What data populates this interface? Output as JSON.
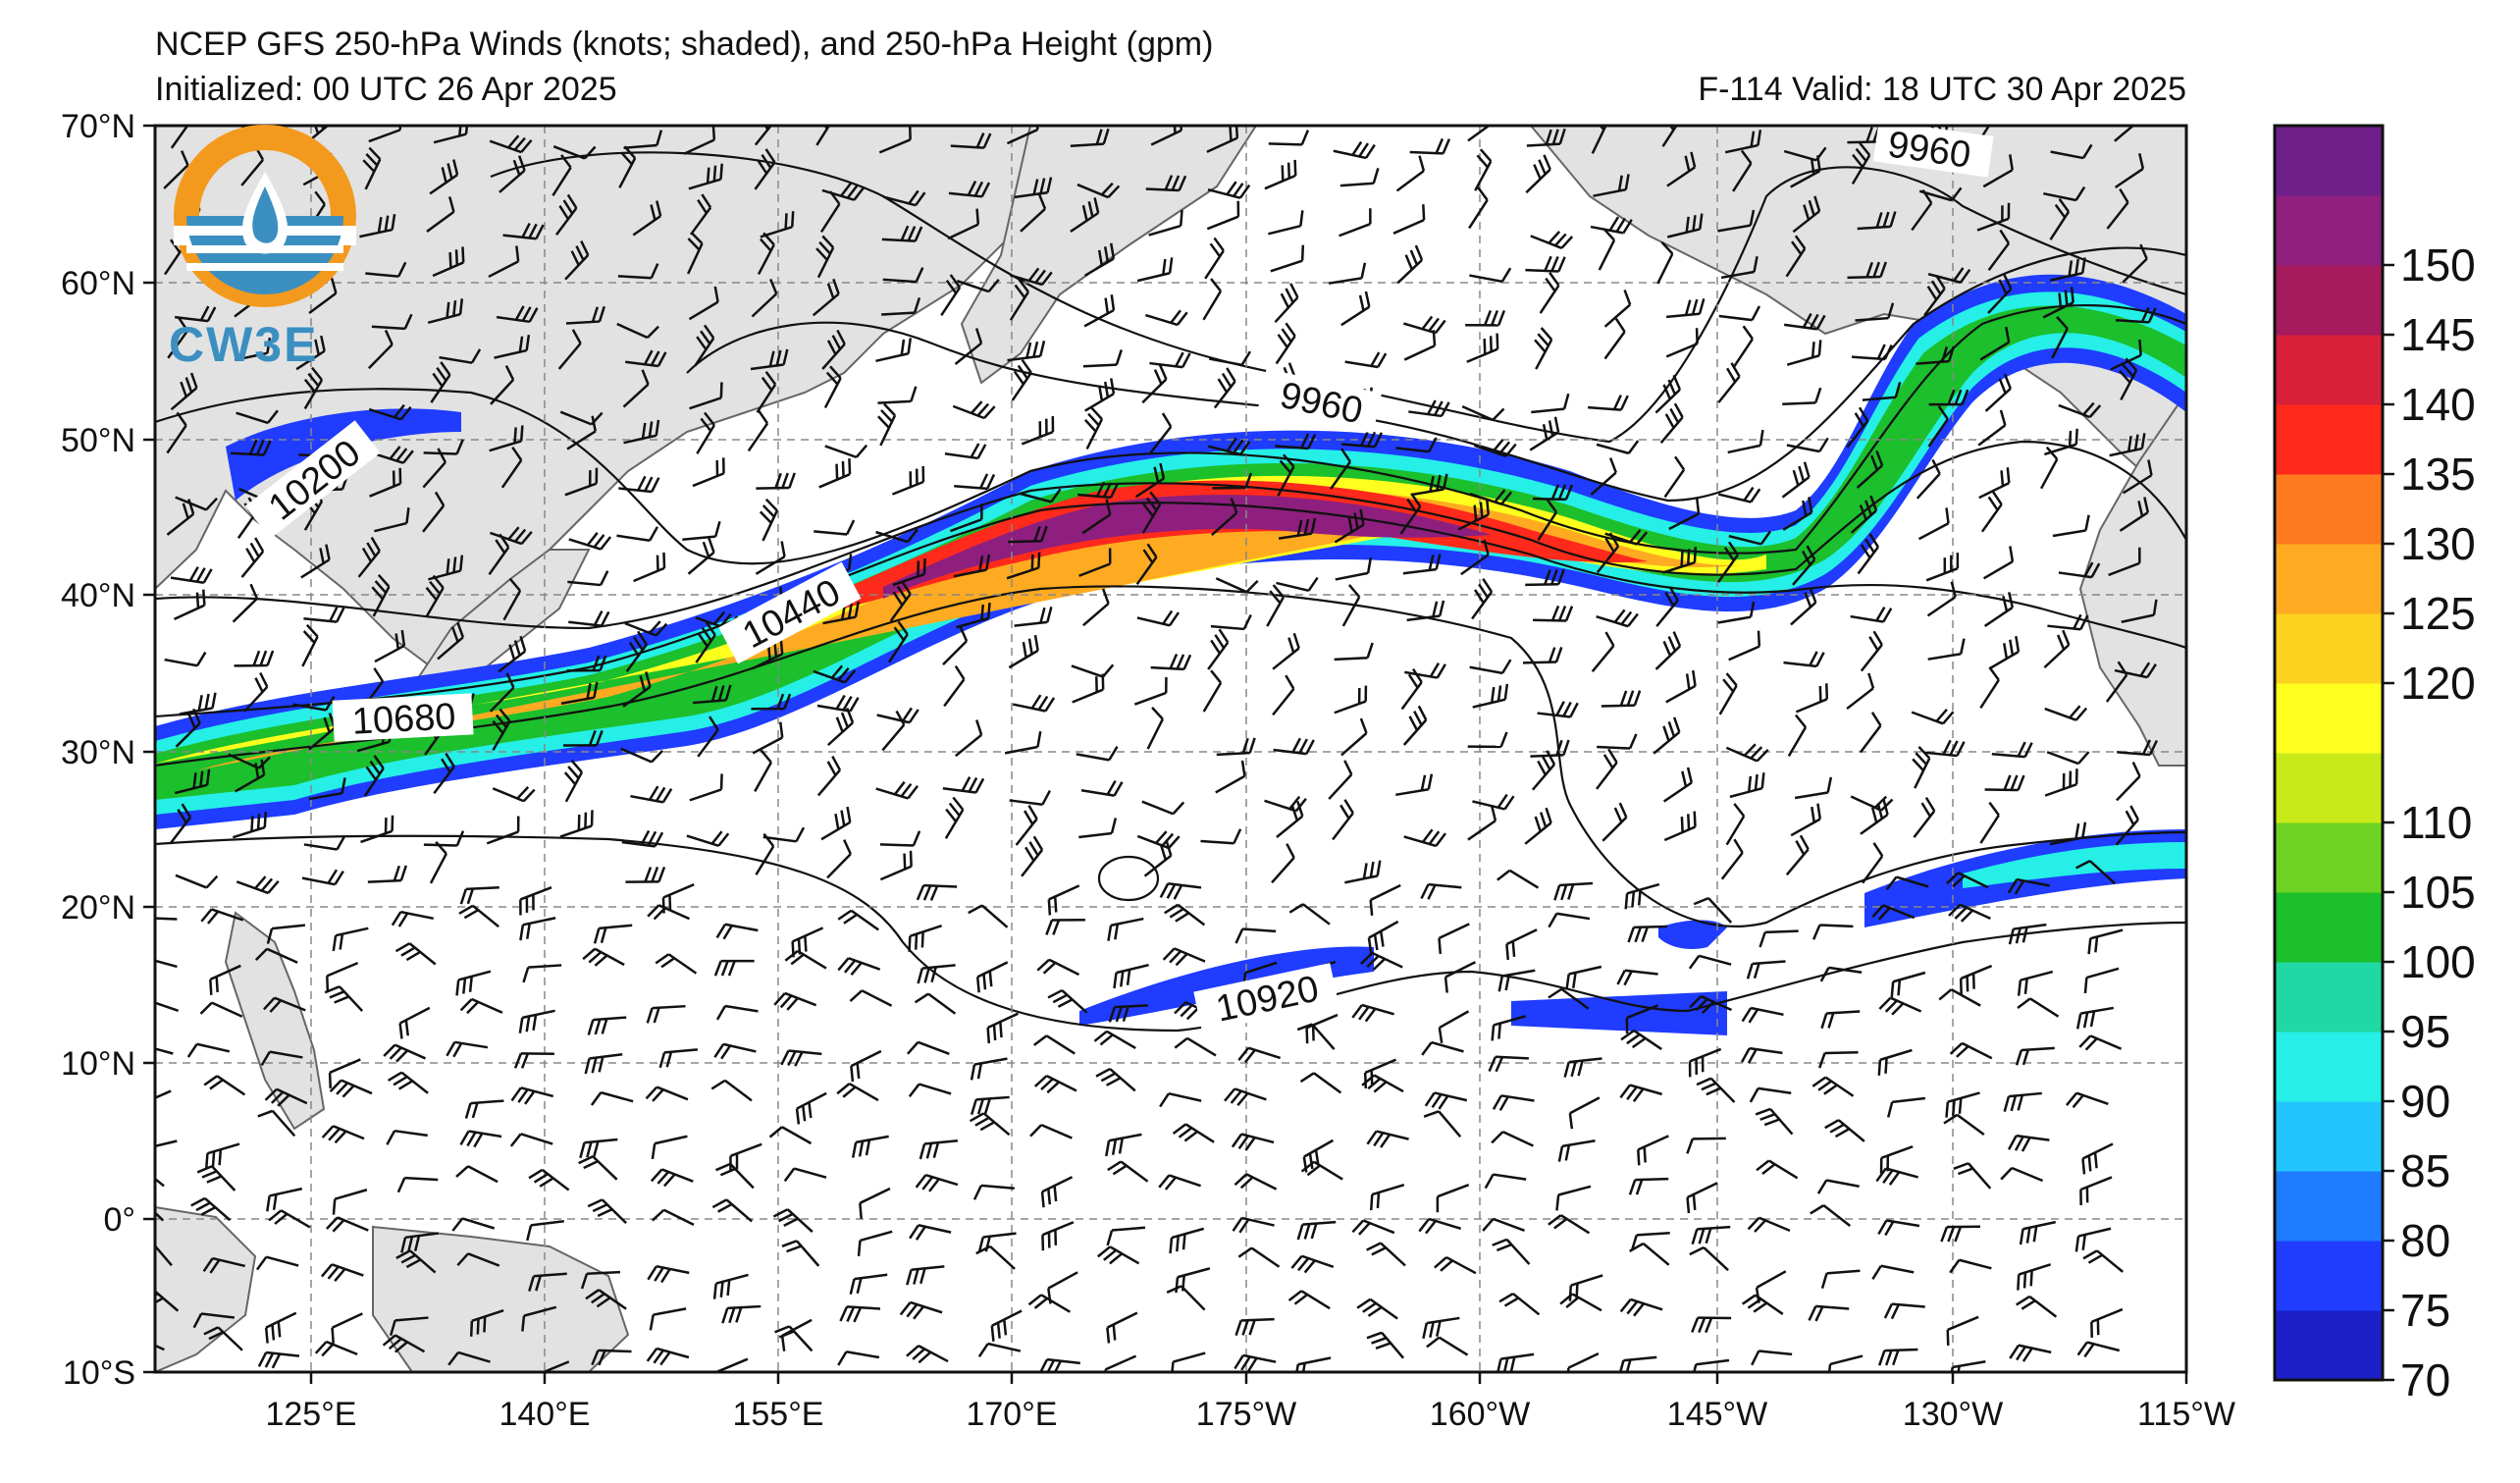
{
  "title": {
    "line1": "NCEP GFS 250-hPa Winds (knots; shaded), and 250-hPa Height (gpm)",
    "initialized": "Initialized: 00 UTC 26 Apr 2025",
    "valid": "F-114  Valid: 18 UTC 30 Apr 2025"
  },
  "logo": {
    "text": "CW3E"
  },
  "axes": {
    "lat_labels": [
      "70°N",
      "60°N",
      "50°N",
      "40°N",
      "30°N",
      "20°N",
      "10°N",
      "0°",
      "10°S"
    ],
    "lon_labels": [
      "125°E",
      "140°E",
      "155°E",
      "170°E",
      "175°W",
      "160°W",
      "145°W",
      "130°W",
      "115°W"
    ]
  },
  "contours": {
    "labels": [
      "9960",
      "9960",
      "10200",
      "10440",
      "10680",
      "10920"
    ]
  },
  "colorbar": {
    "ticks": [
      "70",
      "75",
      "80",
      "85",
      "90",
      "95",
      "100",
      "105",
      "110",
      "120",
      "125",
      "130",
      "135",
      "140",
      "145",
      "150"
    ],
    "colors": [
      "#1c1fc7",
      "#1f3cff",
      "#1e7cff",
      "#22c6ff",
      "#25efe6",
      "#1fd8a4",
      "#1cbf2c",
      "#6ed322",
      "#c8ea18",
      "#ffff1e",
      "#fdd21f",
      "#ffab21",
      "#ff7a1f",
      "#ff2a1b",
      "#d9203a",
      "#a61a5e",
      "#8e1f7f",
      "#6f1f8a"
    ]
  }
}
